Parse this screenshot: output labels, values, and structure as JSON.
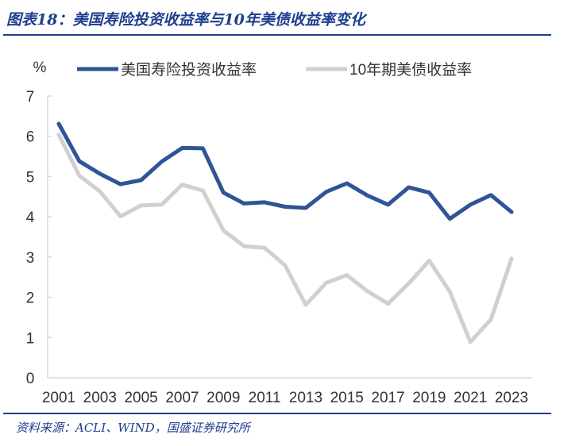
{
  "title": "图表18：美国寿险投资收益率与10年美债收益率变化",
  "source": "资料来源：ACLI、WIND，国盛证券研究所",
  "chart_data": {
    "type": "line",
    "title": "图表18：美国寿险投资收益率与10年美债收益率变化",
    "ylabel": "%",
    "xlabel": "",
    "ylim": [
      0,
      7
    ],
    "yticks": [
      "0",
      "1",
      "2",
      "3",
      "4",
      "5",
      "6",
      "7"
    ],
    "x": [
      2001,
      2002,
      2003,
      2004,
      2005,
      2006,
      2007,
      2008,
      2009,
      2010,
      2011,
      2012,
      2013,
      2014,
      2015,
      2016,
      2017,
      2018,
      2019,
      2020,
      2021,
      2022,
      2023
    ],
    "xticks": [
      "2001",
      "2003",
      "2005",
      "2007",
      "2009",
      "2011",
      "2013",
      "2015",
      "2017",
      "2019",
      "2021",
      "2023"
    ],
    "legend_position": "top",
    "series": [
      {
        "name": "美国寿险投资收益率",
        "color": "#2F5597",
        "values": [
          6.31,
          5.38,
          5.07,
          4.81,
          4.91,
          5.37,
          5.71,
          5.7,
          4.6,
          4.33,
          4.36,
          4.25,
          4.22,
          4.62,
          4.83,
          4.53,
          4.3,
          4.73,
          4.6,
          3.95,
          4.3,
          4.54,
          4.12
        ]
      },
      {
        "name": "10年期美债收益率",
        "color": "#D0D0D0",
        "values": [
          6.04,
          5.02,
          4.63,
          4.01,
          4.28,
          4.3,
          4.8,
          4.65,
          3.66,
          3.27,
          3.23,
          2.79,
          1.81,
          2.36,
          2.55,
          2.15,
          1.84,
          2.34,
          2.91,
          2.14,
          0.89,
          1.45,
          2.96
        ]
      }
    ]
  }
}
